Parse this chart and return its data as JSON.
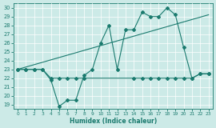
{
  "xlabel": "Humidex (Indice chaleur)",
  "xlim": [
    -0.5,
    23.5
  ],
  "ylim": [
    18.5,
    30.5
  ],
  "yticks": [
    19,
    20,
    21,
    22,
    23,
    24,
    25,
    26,
    27,
    28,
    29,
    30
  ],
  "xticks": [
    0,
    1,
    2,
    3,
    4,
    5,
    6,
    7,
    8,
    9,
    10,
    11,
    12,
    13,
    14,
    15,
    16,
    17,
    18,
    19,
    20,
    21,
    22,
    23
  ],
  "bg_color": "#cceae7",
  "line_color": "#1a7a6e",
  "line1_x": [
    0,
    1,
    2,
    3,
    4,
    5,
    6,
    7,
    8,
    9,
    10,
    11,
    12,
    13,
    14,
    15,
    16,
    17,
    18,
    19,
    20,
    21,
    22,
    23
  ],
  "line1_y": [
    23,
    23,
    23,
    23,
    21.8,
    18.8,
    19.5,
    19.5,
    22.3,
    23,
    26,
    28,
    23,
    27.5,
    27.5,
    29.5,
    29,
    29,
    30,
    29.2,
    25.5,
    22,
    22.5,
    22.5
  ],
  "line2_x": [
    0,
    1,
    2,
    3,
    4,
    5,
    6,
    7,
    8,
    14,
    15,
    16,
    17,
    18,
    19,
    20,
    21,
    22,
    23
  ],
  "line2_y": [
    23,
    23,
    23,
    23,
    22,
    22,
    22,
    22,
    22,
    22,
    22,
    22,
    22,
    22,
    22,
    22,
    22,
    22.5,
    22.5
  ],
  "line3_x": [
    0,
    23
  ],
  "line3_y": [
    23,
    29.2
  ]
}
